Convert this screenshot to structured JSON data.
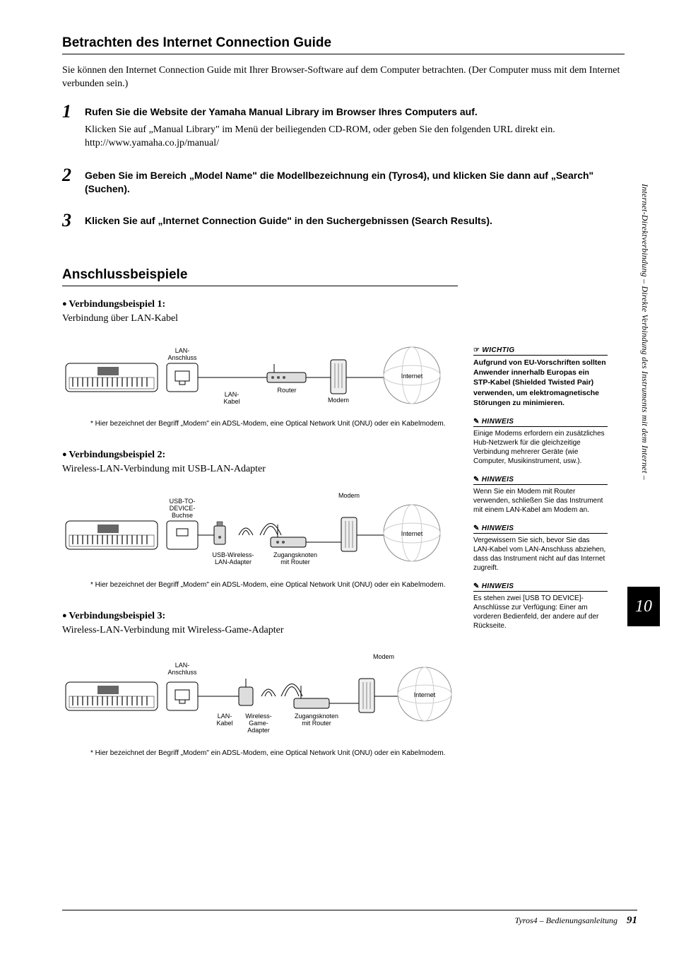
{
  "sideText": "Internet-Direktverbindung – Direkte Verbindung des Instruments mit dem Internet –",
  "chapterNumber": "10",
  "footer": {
    "text": "Tyros4 – Bedienungsanleitung",
    "page": "91"
  },
  "section1": {
    "title": "Betrachten des Internet Connection Guide",
    "intro": "Sie können den Internet Connection Guide mit Ihrer Browser-Software auf dem Computer betrachten. (Der Computer muss mit dem Internet verbunden sein.)",
    "steps": [
      {
        "num": "1",
        "head": "Rufen Sie die Website der Yamaha Manual Library im Browser Ihres Computers auf.",
        "body": "Klicken Sie auf „Manual Library\" im Menü der beiliegenden CD-ROM, oder geben Sie den folgenden URL direkt ein.\nhttp://www.yamaha.co.jp/manual/"
      },
      {
        "num": "2",
        "head": "Geben Sie im Bereich „Model Name\" die Modellbezeichnung ein (Tyros4), und klicken Sie dann auf „Search\" (Suchen).",
        "body": ""
      },
      {
        "num": "3",
        "head": "Klicken Sie auf „Internet Connection Guide\" in den Suchergebnissen (Search Results).",
        "body": ""
      }
    ]
  },
  "section2": {
    "title": "Anschlussbeispiele",
    "examples": [
      {
        "title": "Verbindungsbeispiel 1:",
        "sub": "Verbindung über LAN-Kabel",
        "labels": {
          "port": "LAN-\nAnschluss",
          "cable": "LAN-\nKabel",
          "mid1": "Router",
          "mid2": "Modem",
          "cloud": "Internet"
        },
        "footnote": "* Hier bezeichnet der Begriff „Modem\" ein ADSL-Modem, eine Optical Network Unit (ONU) oder ein Kabelmodem."
      },
      {
        "title": "Verbindungsbeispiel 2:",
        "sub": "Wireless-LAN-Verbindung mit USB-LAN-Adapter",
        "labels": {
          "port": "USB-TO-\nDEVICE-\nBuchse",
          "cable": "USB-Wireless-\nLAN-Adapter",
          "mid1": "Zugangsknoten\nmit Router",
          "mid2": "Modem",
          "cloud": "Internet"
        },
        "footnote": "* Hier bezeichnet der Begriff „Modem\" ein ADSL-Modem, eine Optical Network Unit (ONU) oder ein Kabelmodem."
      },
      {
        "title": "Verbindungsbeispiel 3:",
        "sub": "Wireless-LAN-Verbindung mit Wireless-Game-Adapter",
        "labels": {
          "port": "LAN-\nAnschluss",
          "cable": "LAN-\nKabel",
          "extra": "Wireless-\nGame-\nAdapter",
          "mid1": "Zugangsknoten\nmit Router",
          "mid2": "Modem",
          "cloud": "Internet"
        },
        "footnote": "* Hier bezeichnet der Begriff „Modem\" ein ADSL-Modem, eine Optical Network Unit (ONU) oder ein Kabelmodem."
      }
    ]
  },
  "notes": {
    "wichtig": {
      "head": "WICHTIG",
      "body": "Aufgrund von EU-Vorschriften sollten Anwender innerhalb Europas ein STP-Kabel (Shielded Twisted Pair) verwenden, um elektromagnetische Störungen zu minimieren."
    },
    "hinweise": [
      "Einige Modems erfordern ein zusätzliches Hub-Netzwerk für die gleichzeitige Verbindung mehrerer Geräte (wie Computer, Musikinstrument, usw.).",
      "Wenn Sie ein Modem mit Router verwenden, schließen Sie das Instrument mit einem LAN-Kabel am Modem an.",
      "Vergewissern Sie sich, bevor Sie das LAN-Kabel vom LAN-Anschluss abziehen, dass das Instrument nicht auf das Internet zugreift.",
      "Es stehen zwei [USB TO DEVICE]-Anschlüsse zur Verfügung: Einer am vorderen Bedienfeld, der andere auf der Rückseite."
    ],
    "hinweisLabel": "HINWEIS"
  }
}
